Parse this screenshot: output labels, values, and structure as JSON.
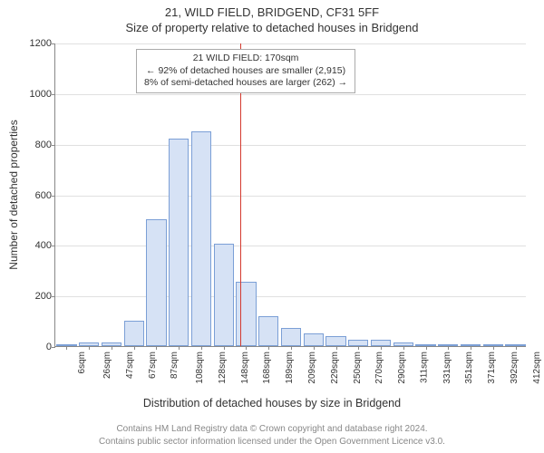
{
  "title_line1": "21, WILD FIELD, BRIDGEND, CF31 5FF",
  "title_line2": "Size of property relative to detached houses in Bridgend",
  "chart": {
    "type": "histogram",
    "background_color": "#ffffff",
    "grid_color": "#e0e0e0",
    "axis_color": "#888888",
    "bar_fill": "#d6e2f5",
    "bar_stroke": "#7b9fd6",
    "ref_line_color": "#d43a2f",
    "ref_line_x_index": 8,
    "ylabel": "Number of detached properties",
    "xlabel": "Distribution of detached houses by size in Bridgend",
    "ylim": [
      0,
      1200
    ],
    "ytick_step": 200,
    "x_categories": [
      "6sqm",
      "26sqm",
      "47sqm",
      "67sqm",
      "87sqm",
      "108sqm",
      "128sqm",
      "148sqm",
      "168sqm",
      "189sqm",
      "209sqm",
      "229sqm",
      "250sqm",
      "270sqm",
      "290sqm",
      "311sqm",
      "331sqm",
      "351sqm",
      "371sqm",
      "392sqm",
      "412sqm"
    ],
    "bar_values": [
      2,
      15,
      15,
      100,
      500,
      820,
      850,
      405,
      255,
      120,
      70,
      50,
      40,
      25,
      25,
      15,
      5,
      3,
      8,
      3,
      5
    ],
    "callout": {
      "lines": [
        "21 WILD FIELD: 170sqm",
        "← 92% of detached houses are smaller (2,915)",
        "8% of semi-detached houses are larger (262) →"
      ],
      "border_color": "#aaaaaa",
      "bg": "#ffffff",
      "fontsize": 10.5
    },
    "label_fontsize": 12,
    "tick_fontsize": 11,
    "xtick_fontsize": 10
  },
  "footer_line1": "Contains HM Land Registry data © Crown copyright and database right 2024.",
  "footer_line2": "Contains public sector information licensed under the Open Government Licence v3.0."
}
